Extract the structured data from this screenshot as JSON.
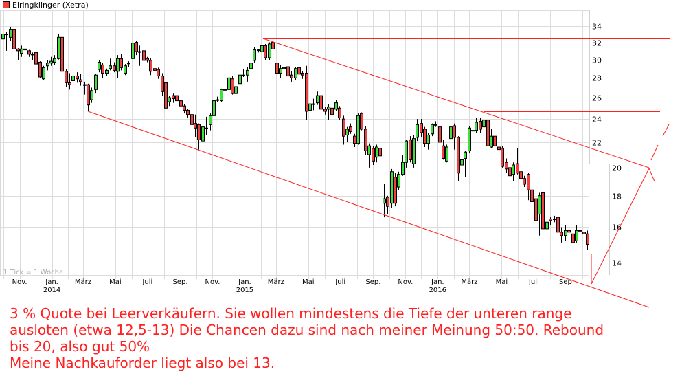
{
  "legend": {
    "label": "Elringklinger (Xetra)",
    "color": "#f04040"
  },
  "annotation_text": [
    "3 % Quote bei Leerverkäufern. Sie wollen mindestens die Tiefe der unteren range",
    "ausloten (etwa 12,5-13) Die Chancen dazu sind nach meiner Meinung 50:50. Rebound",
    "bis 20, also gut 50%",
    "Meine Nachkauforder liegt also bei 13."
  ],
  "annotation_color": "#ff2020",
  "chart_data": {
    "type": "candlestick",
    "title": "Elringklinger (Xetra)",
    "interval_note": "1 Tick = 1 Woche",
    "y_scale": "log",
    "ylim": [
      13.3,
      36.1
    ],
    "y_ticks": [
      34,
      32,
      30,
      28,
      26,
      24,
      22,
      20,
      18,
      16,
      14
    ],
    "x_ticks": [
      {
        "label": "Nov.",
        "date": "2013-11-01",
        "year": ""
      },
      {
        "label": "Jan.",
        "date": "2014-01-01",
        "year": "2014"
      },
      {
        "label": "März",
        "date": "2014-03-01",
        "year": ""
      },
      {
        "label": "Mai",
        "date": "2014-05-01",
        "year": ""
      },
      {
        "label": "Juli",
        "date": "2014-07-01",
        "year": ""
      },
      {
        "label": "Sep.",
        "date": "2014-09-01",
        "year": ""
      },
      {
        "label": "Nov.",
        "date": "2014-11-01",
        "year": ""
      },
      {
        "label": "Jan.",
        "date": "2015-01-01",
        "year": "2015"
      },
      {
        "label": "März",
        "date": "2015-03-01",
        "year": ""
      },
      {
        "label": "Mai",
        "date": "2015-05-01",
        "year": ""
      },
      {
        "label": "Juli",
        "date": "2015-07-01",
        "year": ""
      },
      {
        "label": "Sep.",
        "date": "2015-09-01",
        "year": ""
      },
      {
        "label": "Nov.",
        "date": "2015-11-01",
        "year": ""
      },
      {
        "label": "Jan.",
        "date": "2016-01-01",
        "year": "2016"
      },
      {
        "label": "März",
        "date": "2016-03-01",
        "year": ""
      },
      {
        "label": "Mai",
        "date": "2016-05-01",
        "year": ""
      },
      {
        "label": "Juli",
        "date": "2016-07-01",
        "year": ""
      },
      {
        "label": "Sep.",
        "date": "2016-09-01",
        "year": ""
      }
    ],
    "grid": true,
    "up_color": "#3ee03e",
    "down_color": "#f04040",
    "trendline_color": "#ff2020",
    "candles_columns": [
      "date",
      "open",
      "high",
      "low",
      "close"
    ],
    "candles": [
      [
        "2013-09-30",
        32.4,
        34.3,
        32.2,
        33.0
      ],
      [
        "2013-10-07",
        33.0,
        33.3,
        31.0,
        33.0
      ],
      [
        "2013-10-14",
        32.6,
        33.9,
        32.2,
        33.6
      ],
      [
        "2013-10-21",
        33.6,
        35.6,
        31.0,
        31.2
      ],
      [
        "2013-10-28",
        31.2,
        31.3,
        29.9,
        31.0
      ],
      [
        "2013-11-04",
        30.7,
        31.6,
        30.3,
        31.2
      ],
      [
        "2013-11-11",
        31.2,
        31.5,
        29.8,
        31.1
      ],
      [
        "2013-11-18",
        31.0,
        31.1,
        30.3,
        30.6
      ],
      [
        "2013-11-25",
        30.6,
        30.8,
        29.9,
        30.6
      ],
      [
        "2013-12-02",
        30.8,
        31.0,
        27.6,
        29.5
      ],
      [
        "2013-12-09",
        29.7,
        29.8,
        28.0,
        28.1
      ],
      [
        "2013-12-16",
        27.9,
        29.3,
        27.8,
        29.1
      ],
      [
        "2013-12-23",
        29.3,
        29.9,
        28.8,
        29.6
      ],
      [
        "2013-12-30",
        29.6,
        30.3,
        29.3,
        29.8
      ],
      [
        "2014-01-06",
        29.7,
        30.5,
        29.4,
        30.1
      ],
      [
        "2014-01-13",
        30.1,
        33.0,
        30.0,
        32.6
      ],
      [
        "2014-01-20",
        32.6,
        32.9,
        28.3,
        28.7
      ],
      [
        "2014-01-27",
        28.7,
        28.9,
        27.1,
        27.5
      ],
      [
        "2014-02-03",
        27.5,
        28.5,
        26.8,
        27.3
      ],
      [
        "2014-02-10",
        27.7,
        28.6,
        27.3,
        28.2
      ],
      [
        "2014-02-17",
        28.2,
        28.6,
        27.5,
        27.9
      ],
      [
        "2014-02-24",
        27.8,
        28.4,
        27.2,
        27.6
      ],
      [
        "2014-03-03",
        27.3,
        27.6,
        26.3,
        27.3
      ],
      [
        "2014-03-10",
        27.3,
        27.4,
        24.7,
        25.3
      ],
      [
        "2014-03-17",
        25.8,
        27.0,
        25.5,
        26.7
      ],
      [
        "2014-03-24",
        26.8,
        28.4,
        26.4,
        28.3
      ],
      [
        "2014-03-31",
        28.9,
        29.9,
        28.6,
        29.7
      ],
      [
        "2014-04-07",
        29.4,
        29.6,
        28.0,
        28.5
      ],
      [
        "2014-04-14",
        28.5,
        29.0,
        28.2,
        28.8
      ],
      [
        "2014-04-21",
        29.0,
        30.1,
        28.8,
        29.3
      ],
      [
        "2014-04-28",
        29.3,
        29.7,
        28.6,
        28.8
      ],
      [
        "2014-05-05",
        28.7,
        30.5,
        28.0,
        30.1
      ],
      [
        "2014-05-12",
        30.1,
        30.6,
        28.8,
        29.1
      ],
      [
        "2014-05-19",
        28.5,
        29.5,
        28.3,
        29.3
      ],
      [
        "2014-05-26",
        29.6,
        29.8,
        29.2,
        29.6
      ],
      [
        "2014-06-02",
        30.1,
        32.3,
        30.0,
        31.9
      ],
      [
        "2014-06-09",
        32.0,
        32.2,
        30.5,
        30.9
      ],
      [
        "2014-06-16",
        30.9,
        31.6,
        29.3,
        30.9
      ],
      [
        "2014-06-23",
        31.0,
        31.6,
        29.6,
        29.9
      ],
      [
        "2014-06-30",
        30.1,
        30.3,
        29.7,
        29.9
      ],
      [
        "2014-07-07",
        29.9,
        30.2,
        28.3,
        28.7
      ],
      [
        "2014-07-14",
        29.0,
        29.9,
        28.5,
        28.8
      ],
      [
        "2014-07-21",
        28.9,
        29.1,
        27.9,
        28.2
      ],
      [
        "2014-07-28",
        28.2,
        28.5,
        26.2,
        26.6
      ],
      [
        "2014-08-04",
        27.5,
        27.7,
        24.3,
        25.0
      ],
      [
        "2014-08-11",
        25.6,
        26.2,
        25.2,
        26.0
      ],
      [
        "2014-08-18",
        26.2,
        26.4,
        25.5,
        25.9
      ],
      [
        "2014-08-25",
        26.2,
        26.4,
        25.1,
        25.7
      ],
      [
        "2014-09-01",
        25.7,
        25.9,
        24.7,
        25.2
      ],
      [
        "2014-09-08",
        25.2,
        25.4,
        24.5,
        24.8
      ],
      [
        "2014-09-15",
        24.8,
        24.9,
        24.1,
        24.4
      ],
      [
        "2014-09-22",
        24.4,
        24.5,
        23.3,
        23.5
      ],
      [
        "2014-09-29",
        23.6,
        24.4,
        22.4,
        23.2
      ],
      [
        "2014-10-06",
        23.5,
        23.6,
        21.4,
        22.2
      ],
      [
        "2014-10-13",
        22.1,
        23.4,
        21.5,
        23.3
      ],
      [
        "2014-10-20",
        23.2,
        24.2,
        22.6,
        23.2
      ],
      [
        "2014-10-27",
        23.5,
        24.5,
        23.0,
        24.3
      ],
      [
        "2014-11-03",
        24.3,
        25.9,
        24.2,
        25.7
      ],
      [
        "2014-11-10",
        25.8,
        26.1,
        25.6,
        25.8
      ],
      [
        "2014-11-17",
        25.7,
        26.9,
        25.6,
        26.8
      ],
      [
        "2014-11-24",
        26.8,
        27.0,
        26.5,
        26.8
      ],
      [
        "2014-12-01",
        26.8,
        28.2,
        26.5,
        28.0
      ],
      [
        "2014-12-08",
        27.9,
        28.2,
        26.3,
        26.4
      ],
      [
        "2014-12-15",
        26.4,
        27.3,
        25.6,
        27.1
      ],
      [
        "2014-12-22",
        27.4,
        28.4,
        27.2,
        28.3
      ],
      [
        "2014-12-29",
        28.3,
        28.9,
        28.1,
        28.3
      ],
      [
        "2015-01-05",
        28.3,
        29.2,
        27.6,
        28.8
      ],
      [
        "2015-01-12",
        29.0,
        29.8,
        28.5,
        29.6
      ],
      [
        "2015-01-19",
        29.9,
        31.4,
        29.6,
        31.1
      ],
      [
        "2015-01-26",
        31.1,
        31.2,
        30.8,
        31.1
      ],
      [
        "2015-02-02",
        30.9,
        32.7,
        30.7,
        31.6
      ],
      [
        "2015-02-09",
        31.6,
        31.8,
        29.9,
        30.2
      ],
      [
        "2015-02-16",
        30.2,
        32.0,
        29.9,
        31.8
      ],
      [
        "2015-02-23",
        32.0,
        32.6,
        30.7,
        31.2
      ],
      [
        "2015-03-02",
        29.6,
        30.9,
        28.1,
        28.5
      ],
      [
        "2015-03-09",
        28.5,
        29.4,
        28.0,
        29.0
      ],
      [
        "2015-03-16",
        29.0,
        29.4,
        28.8,
        29.1
      ],
      [
        "2015-03-23",
        29.2,
        29.4,
        27.7,
        28.2
      ],
      [
        "2015-03-30",
        28.3,
        28.7,
        27.6,
        28.0
      ],
      [
        "2015-04-06",
        28.0,
        29.2,
        27.8,
        29.0
      ],
      [
        "2015-04-13",
        29.1,
        29.3,
        28.1,
        28.4
      ],
      [
        "2015-04-20",
        28.5,
        28.7,
        27.9,
        28.3
      ],
      [
        "2015-04-27",
        28.5,
        29.3,
        23.9,
        24.7
      ],
      [
        "2015-05-04",
        24.8,
        25.5,
        24.3,
        25.4
      ],
      [
        "2015-05-11",
        25.4,
        25.9,
        24.8,
        25.4
      ],
      [
        "2015-05-18",
        25.5,
        26.6,
        25.3,
        26.2
      ],
      [
        "2015-05-25",
        26.2,
        26.3,
        24.0,
        24.9
      ],
      [
        "2015-06-01",
        24.9,
        25.1,
        24.4,
        24.7
      ],
      [
        "2015-06-08",
        24.9,
        25.4,
        23.9,
        25.1
      ],
      [
        "2015-06-15",
        25.0,
        25.6,
        23.8,
        24.4
      ],
      [
        "2015-06-22",
        24.9,
        25.8,
        24.7,
        25.5
      ],
      [
        "2015-06-29",
        25.0,
        25.2,
        23.9,
        24.1
      ],
      [
        "2015-07-06",
        24.0,
        24.3,
        21.8,
        22.5
      ],
      [
        "2015-07-13",
        22.6,
        23.3,
        22.0,
        23.1
      ],
      [
        "2015-07-20",
        23.3,
        23.6,
        22.7,
        22.9
      ],
      [
        "2015-07-27",
        22.5,
        22.7,
        21.6,
        21.9
      ],
      [
        "2015-08-03",
        21.9,
        24.5,
        21.8,
        24.3
      ],
      [
        "2015-08-10",
        24.5,
        24.6,
        23.0,
        23.1
      ],
      [
        "2015-08-17",
        23.1,
        23.4,
        21.0,
        21.3
      ],
      [
        "2015-08-24",
        21.0,
        21.9,
        20.0,
        21.7
      ],
      [
        "2015-08-31",
        21.5,
        21.7,
        20.2,
        20.5
      ],
      [
        "2015-09-07",
        20.8,
        21.8,
        20.4,
        21.6
      ],
      [
        "2015-09-14",
        21.5,
        21.8,
        20.7,
        20.9
      ],
      [
        "2015-09-21",
        17.5,
        18.8,
        16.6,
        17.8
      ],
      [
        "2015-09-28",
        17.9,
        18.0,
        16.8,
        17.3
      ],
      [
        "2015-10-05",
        17.5,
        19.9,
        17.2,
        19.7
      ],
      [
        "2015-10-12",
        19.3,
        19.6,
        17.3,
        17.5
      ],
      [
        "2015-10-19",
        18.6,
        19.7,
        18.4,
        19.5
      ],
      [
        "2015-10-26",
        19.5,
        21.0,
        19.4,
        20.4
      ],
      [
        "2015-11-02",
        20.4,
        22.2,
        20.0,
        22.1
      ],
      [
        "2015-11-09",
        22.2,
        22.5,
        20.4,
        20.6
      ],
      [
        "2015-11-16",
        20.3,
        22.6,
        20.0,
        22.3
      ],
      [
        "2015-11-23",
        22.4,
        24.0,
        22.1,
        23.5
      ],
      [
        "2015-11-30",
        23.6,
        24.0,
        22.4,
        22.8
      ],
      [
        "2015-12-07",
        23.1,
        23.3,
        21.6,
        21.9
      ],
      [
        "2015-12-14",
        21.9,
        22.8,
        21.4,
        22.6
      ],
      [
        "2015-12-21",
        22.7,
        23.6,
        22.5,
        23.5
      ],
      [
        "2015-12-28",
        23.5,
        23.8,
        23.3,
        23.5
      ],
      [
        "2016-01-04",
        23.3,
        23.8,
        21.8,
        22.0
      ],
      [
        "2016-01-11",
        21.7,
        22.2,
        20.6,
        20.7
      ],
      [
        "2016-01-18",
        20.5,
        21.8,
        20.4,
        21.6
      ],
      [
        "2016-01-25",
        22.3,
        23.5,
        22.2,
        23.3
      ],
      [
        "2016-02-01",
        23.4,
        23.6,
        21.4,
        22.4
      ],
      [
        "2016-02-08",
        22.4,
        22.5,
        19.0,
        19.6
      ],
      [
        "2016-02-15",
        20.2,
        20.8,
        19.7,
        20.6
      ],
      [
        "2016-02-22",
        20.7,
        21.3,
        19.3,
        21.2
      ],
      [
        "2016-02-29",
        21.3,
        23.4,
        21.1,
        23.2
      ],
      [
        "2016-03-07",
        23.0,
        23.5,
        21.6,
        23.0
      ],
      [
        "2016-03-14",
        23.0,
        24.1,
        22.8,
        23.7
      ],
      [
        "2016-03-21",
        23.8,
        24.1,
        22.8,
        23.1
      ],
      [
        "2016-03-28",
        23.3,
        24.5,
        23.0,
        23.9
      ],
      [
        "2016-04-04",
        23.9,
        24.2,
        21.6,
        21.7
      ],
      [
        "2016-04-11",
        21.6,
        23.1,
        21.5,
        22.5
      ],
      [
        "2016-04-18",
        22.5,
        23.1,
        21.6,
        21.7
      ],
      [
        "2016-04-25",
        21.6,
        22.3,
        21.2,
        21.4
      ],
      [
        "2016-05-02",
        21.5,
        21.7,
        20.0,
        20.1
      ],
      [
        "2016-05-09",
        20.4,
        20.7,
        19.6,
        19.9
      ],
      [
        "2016-05-16",
        20.0,
        20.2,
        19.1,
        19.4
      ],
      [
        "2016-05-23",
        19.5,
        20.4,
        19.0,
        20.2
      ],
      [
        "2016-05-30",
        20.3,
        21.5,
        19.5,
        19.6
      ],
      [
        "2016-06-06",
        19.7,
        20.8,
        19.0,
        19.2
      ],
      [
        "2016-06-13",
        19.2,
        19.4,
        18.6,
        18.8
      ],
      [
        "2016-06-20",
        19.5,
        19.6,
        17.7,
        18.4
      ],
      [
        "2016-06-27",
        18.4,
        18.6,
        17.3,
        17.6
      ],
      [
        "2016-07-04",
        17.8,
        18.0,
        15.7,
        16.4
      ],
      [
        "2016-07-11",
        16.8,
        18.2,
        15.5,
        18.0
      ],
      [
        "2016-07-18",
        18.2,
        18.6,
        15.5,
        15.9
      ],
      [
        "2016-07-25",
        15.9,
        16.5,
        15.6,
        16.3
      ],
      [
        "2016-08-01",
        16.5,
        16.6,
        16.1,
        16.4
      ],
      [
        "2016-08-08",
        16.5,
        16.7,
        16.3,
        16.5
      ],
      [
        "2016-08-15",
        16.6,
        16.8,
        15.6,
        15.7
      ],
      [
        "2016-08-22",
        15.7,
        16.0,
        15.1,
        15.5
      ],
      [
        "2016-08-29",
        15.5,
        16.1,
        15.2,
        15.8
      ],
      [
        "2016-09-05",
        15.8,
        16.1,
        15.4,
        15.7
      ],
      [
        "2016-09-12",
        15.6,
        15.8,
        15.0,
        15.1
      ],
      [
        "2016-09-19",
        15.2,
        16.1,
        15.1,
        15.8
      ],
      [
        "2016-09-26",
        15.8,
        16.1,
        15.0,
        15.8
      ],
      [
        "2016-10-03",
        15.7,
        16.0,
        15.4,
        15.6
      ],
      [
        "2016-10-10",
        15.6,
        15.8,
        14.7,
        15.0
      ]
    ]
  }
}
